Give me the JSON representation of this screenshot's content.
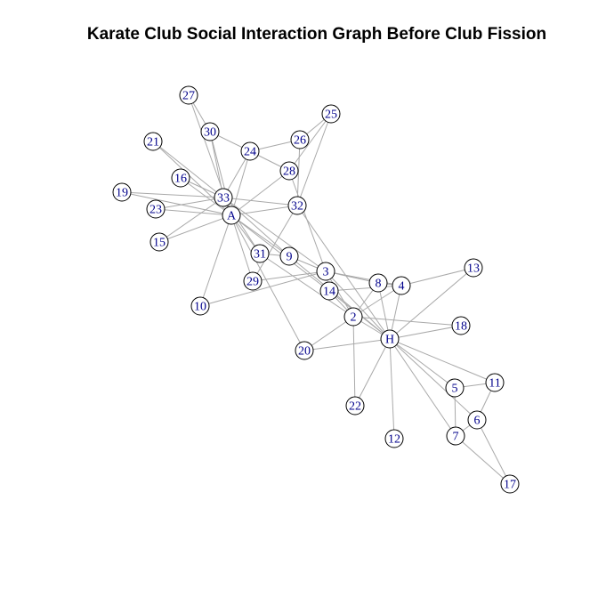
{
  "title": "Karate Club Social Interaction Graph Before Club Fission",
  "colors": {
    "edge": "#a9a9a9",
    "node_fill": "#ffffff",
    "node_stroke": "#000000",
    "label": "#00008b"
  },
  "nodes": [
    {
      "id": "H",
      "label": "H"
    },
    {
      "id": "2",
      "label": "2"
    },
    {
      "id": "3",
      "label": "3"
    },
    {
      "id": "4",
      "label": "4"
    },
    {
      "id": "5",
      "label": "5"
    },
    {
      "id": "6",
      "label": "6"
    },
    {
      "id": "7",
      "label": "7"
    },
    {
      "id": "8",
      "label": "8"
    },
    {
      "id": "9",
      "label": "9"
    },
    {
      "id": "10",
      "label": "10"
    },
    {
      "id": "11",
      "label": "11"
    },
    {
      "id": "12",
      "label": "12"
    },
    {
      "id": "13",
      "label": "13"
    },
    {
      "id": "14",
      "label": "14"
    },
    {
      "id": "15",
      "label": "15"
    },
    {
      "id": "16",
      "label": "16"
    },
    {
      "id": "17",
      "label": "17"
    },
    {
      "id": "18",
      "label": "18"
    },
    {
      "id": "19",
      "label": "19"
    },
    {
      "id": "20",
      "label": "20"
    },
    {
      "id": "21",
      "label": "21"
    },
    {
      "id": "22",
      "label": "22"
    },
    {
      "id": "23",
      "label": "23"
    },
    {
      "id": "24",
      "label": "24"
    },
    {
      "id": "25",
      "label": "25"
    },
    {
      "id": "26",
      "label": "26"
    },
    {
      "id": "27",
      "label": "27"
    },
    {
      "id": "28",
      "label": "28"
    },
    {
      "id": "29",
      "label": "29"
    },
    {
      "id": "30",
      "label": "30"
    },
    {
      "id": "31",
      "label": "31"
    },
    {
      "id": "32",
      "label": "32"
    },
    {
      "id": "33",
      "label": "33"
    },
    {
      "id": "A",
      "label": "A"
    }
  ],
  "edges": [
    [
      "H",
      "2"
    ],
    [
      "H",
      "3"
    ],
    [
      "H",
      "4"
    ],
    [
      "H",
      "5"
    ],
    [
      "H",
      "6"
    ],
    [
      "H",
      "7"
    ],
    [
      "H",
      "8"
    ],
    [
      "H",
      "9"
    ],
    [
      "H",
      "11"
    ],
    [
      "H",
      "12"
    ],
    [
      "H",
      "13"
    ],
    [
      "H",
      "14"
    ],
    [
      "H",
      "18"
    ],
    [
      "H",
      "20"
    ],
    [
      "H",
      "22"
    ],
    [
      "H",
      "32"
    ],
    [
      "2",
      "3"
    ],
    [
      "2",
      "4"
    ],
    [
      "2",
      "8"
    ],
    [
      "2",
      "14"
    ],
    [
      "2",
      "18"
    ],
    [
      "2",
      "20"
    ],
    [
      "2",
      "22"
    ],
    [
      "2",
      "31"
    ],
    [
      "3",
      "4"
    ],
    [
      "3",
      "8"
    ],
    [
      "3",
      "9"
    ],
    [
      "3",
      "10"
    ],
    [
      "3",
      "14"
    ],
    [
      "3",
      "28"
    ],
    [
      "3",
      "29"
    ],
    [
      "3",
      "33"
    ],
    [
      "4",
      "8"
    ],
    [
      "4",
      "13"
    ],
    [
      "4",
      "14"
    ],
    [
      "5",
      "7"
    ],
    [
      "5",
      "11"
    ],
    [
      "6",
      "7"
    ],
    [
      "6",
      "11"
    ],
    [
      "6",
      "17"
    ],
    [
      "7",
      "17"
    ],
    [
      "9",
      "31"
    ],
    [
      "9",
      "33"
    ],
    [
      "9",
      "A"
    ],
    [
      "10",
      "A"
    ],
    [
      "14",
      "A"
    ],
    [
      "15",
      "33"
    ],
    [
      "15",
      "A"
    ],
    [
      "16",
      "33"
    ],
    [
      "16",
      "A"
    ],
    [
      "19",
      "33"
    ],
    [
      "19",
      "A"
    ],
    [
      "20",
      "A"
    ],
    [
      "21",
      "33"
    ],
    [
      "21",
      "A"
    ],
    [
      "23",
      "33"
    ],
    [
      "23",
      "A"
    ],
    [
      "24",
      "26"
    ],
    [
      "24",
      "28"
    ],
    [
      "24",
      "30"
    ],
    [
      "24",
      "33"
    ],
    [
      "24",
      "A"
    ],
    [
      "25",
      "26"
    ],
    [
      "25",
      "28"
    ],
    [
      "25",
      "32"
    ],
    [
      "26",
      "32"
    ],
    [
      "27",
      "30"
    ],
    [
      "27",
      "A"
    ],
    [
      "28",
      "A"
    ],
    [
      "29",
      "32"
    ],
    [
      "29",
      "A"
    ],
    [
      "30",
      "33"
    ],
    [
      "30",
      "A"
    ],
    [
      "31",
      "33"
    ],
    [
      "31",
      "A"
    ],
    [
      "32",
      "33"
    ],
    [
      "32",
      "A"
    ],
    [
      "33",
      "A"
    ]
  ]
}
